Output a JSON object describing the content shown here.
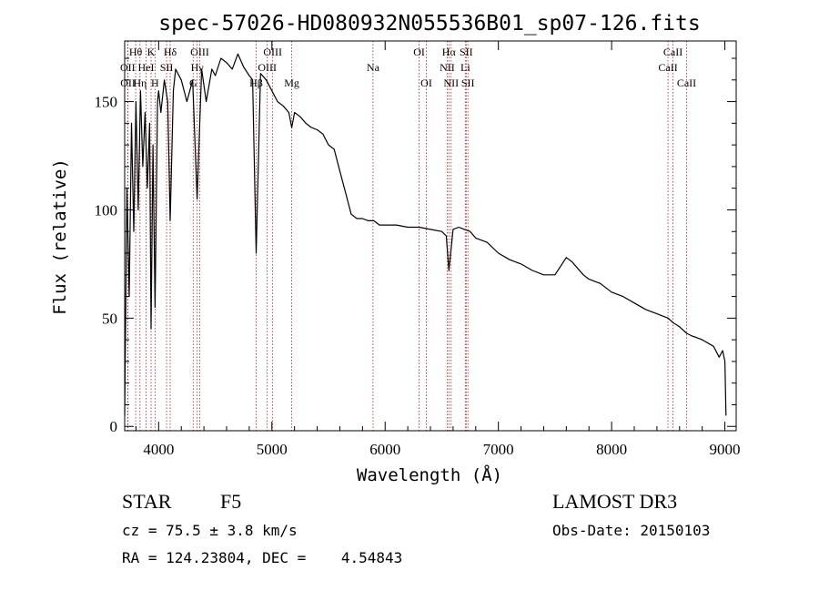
{
  "chart_data": {
    "type": "line",
    "title": "spec-57026-HD080932N055536B01_sp07-126.fits",
    "xlabel": "Wavelength (Å)",
    "ylabel": "Flux (relative)",
    "xlim": [
      3700,
      9100
    ],
    "ylim": [
      -2,
      178
    ],
    "xticks": [
      4000,
      5000,
      6000,
      7000,
      8000,
      9000
    ],
    "xtick_labels": [
      "4000",
      "5000",
      "6000",
      "7000",
      "8000",
      "9000"
    ],
    "yticks": [
      0,
      50,
      100,
      150
    ],
    "ytick_labels": [
      "0",
      "50",
      "100",
      "150"
    ],
    "grid": false,
    "series": [
      {
        "name": "flux",
        "color": "#000000",
        "x": [
          3700,
          3720,
          3740,
          3760,
          3780,
          3800,
          3820,
          3840,
          3860,
          3880,
          3900,
          3920,
          3933,
          3950,
          3968,
          3990,
          4000,
          4020,
          4050,
          4080,
          4102,
          4130,
          4150,
          4200,
          4250,
          4300,
          4340,
          4380,
          4420,
          4470,
          4500,
          4550,
          4600,
          4650,
          4700,
          4750,
          4800,
          4830,
          4861,
          4900,
          4950,
          5000,
          5050,
          5100,
          5150,
          5175,
          5200,
          5250,
          5300,
          5350,
          5400,
          5450,
          5500,
          5550,
          5600,
          5650,
          5700,
          5750,
          5800,
          5850,
          5900,
          5950,
          6000,
          6100,
          6200,
          6300,
          6400,
          6500,
          6540,
          6563,
          6600,
          6650,
          6700,
          6750,
          6800,
          6900,
          7000,
          7100,
          7200,
          7300,
          7400,
          7500,
          7600,
          7650,
          7700,
          7750,
          7800,
          7900,
          8000,
          8100,
          8200,
          8300,
          8400,
          8500,
          8540,
          8600,
          8662,
          8700,
          8800,
          8900,
          8950,
          8980,
          9000,
          9010
        ],
        "values": [
          5,
          110,
          60,
          140,
          90,
          150,
          100,
          155,
          120,
          145,
          110,
          140,
          45,
          130,
          55,
          150,
          155,
          145,
          160,
          150,
          95,
          155,
          165,
          160,
          150,
          160,
          105,
          165,
          150,
          165,
          162,
          170,
          168,
          165,
          172,
          166,
          162,
          160,
          80,
          163,
          160,
          155,
          150,
          148,
          145,
          138,
          145,
          143,
          140,
          138,
          137,
          135,
          130,
          128,
          118,
          108,
          98,
          96,
          96,
          95,
          95,
          93,
          93,
          93,
          92,
          92,
          91,
          90,
          88,
          72,
          91,
          92,
          91,
          90,
          87,
          85,
          80,
          77,
          75,
          72,
          70,
          70,
          78,
          76,
          73,
          70,
          68,
          66,
          62,
          60,
          57,
          54,
          52,
          50,
          48,
          46,
          43,
          42,
          40,
          37,
          32,
          35,
          30,
          5
        ]
      }
    ],
    "lines": [
      {
        "name": "Hθ",
        "wave": 3797,
        "row": 1
      },
      {
        "name": "OII",
        "wave": 3727,
        "row": 2
      },
      {
        "name": "OII",
        "wave": 3729,
        "row": 3
      },
      {
        "name": "Hη",
        "wave": 3835,
        "row": 3
      },
      {
        "name": "K",
        "wave": 3933,
        "row": 1
      },
      {
        "name": "HeI",
        "wave": 3889,
        "row": 2
      },
      {
        "name": "H",
        "wave": 3968,
        "row": 3
      },
      {
        "name": "Hδ",
        "wave": 4102,
        "row": 1
      },
      {
        "name": "SII",
        "wave": 4070,
        "row": 2
      },
      {
        "name": "OIII",
        "wave": 4363,
        "row": 1
      },
      {
        "name": "Hγ",
        "wave": 4340,
        "row": 2
      },
      {
        "name": "G",
        "wave": 4305,
        "row": 3
      },
      {
        "name": "Hβ",
        "wave": 4861,
        "row": 3
      },
      {
        "name": "OIII",
        "wave": 4959,
        "row": 2
      },
      {
        "name": "OIII",
        "wave": 5007,
        "row": 1
      },
      {
        "name": "Mg",
        "wave": 5175,
        "row": 3
      },
      {
        "name": "Na",
        "wave": 5893,
        "row": 2
      },
      {
        "name": "OI",
        "wave": 6300,
        "row": 1
      },
      {
        "name": "OI",
        "wave": 6364,
        "row": 3
      },
      {
        "name": "Hα",
        "wave": 6563,
        "row": 1
      },
      {
        "name": "NII",
        "wave": 6548,
        "row": 2
      },
      {
        "name": "NII",
        "wave": 6583,
        "row": 3
      },
      {
        "name": "SII",
        "wave": 6716,
        "row": 1
      },
      {
        "name": "Li",
        "wave": 6708,
        "row": 2
      },
      {
        "name": "SII",
        "wave": 6731,
        "row": 3
      },
      {
        "name": "CaII",
        "wave": 8542,
        "row": 1
      },
      {
        "name": "CaII",
        "wave": 8498,
        "row": 2
      },
      {
        "name": "CaII",
        "wave": 8662,
        "row": 3
      }
    ],
    "line_color": "#b22222"
  },
  "info": {
    "class_label": "STAR",
    "subclass": "F5",
    "survey": "LAMOST DR3",
    "cz": "cz = 75.5 ± 3.8 km/s",
    "obs_date": "Obs-Date: 20150103",
    "coords": "RA = 124.23804, DEC =    4.54843"
  }
}
